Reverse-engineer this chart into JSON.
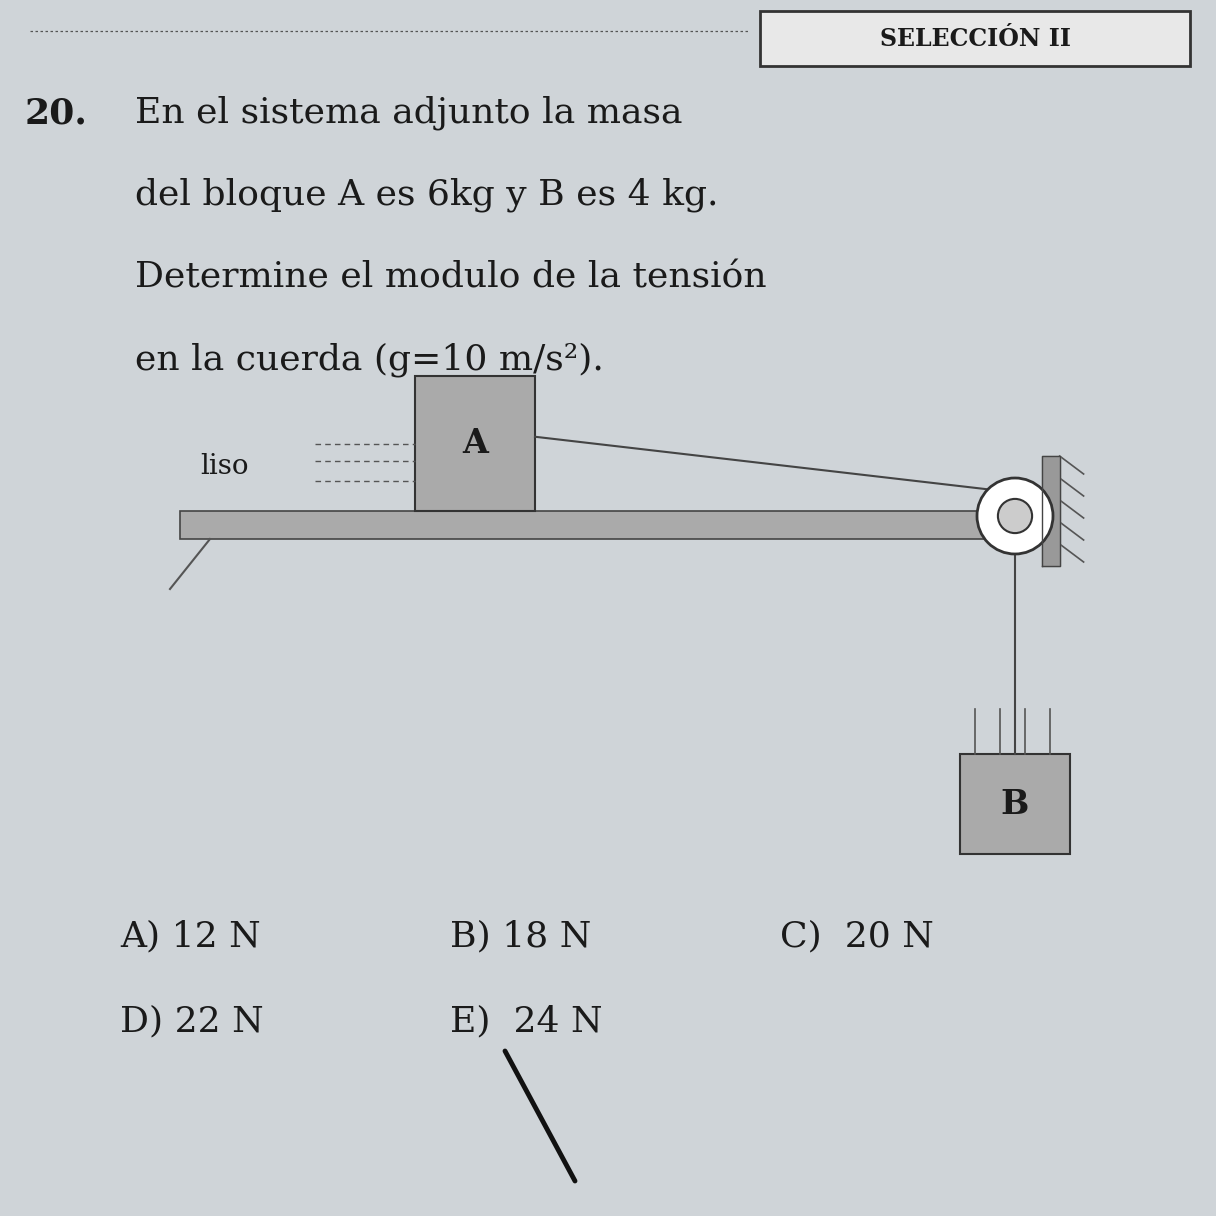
{
  "bg_color": "#cfd4d8",
  "title_box_text": "SELECCIÓN II",
  "problem_number": "20.",
  "line1": "En el sistema adjunto la masa",
  "line2": "del bloque A es 6kg y B es 4 kg.",
  "line3": "Determine el modulo de la tensión",
  "line4": "en la cuerda (g=10 m/s²).",
  "liso_label": "liso",
  "block_a_label": "A",
  "block_b_label": "B",
  "answer_a": "A) 12 N",
  "answer_b": "B) 18 N",
  "answer_c": "C)  20 N",
  "answer_d": "D) 22 N",
  "answer_e": "E)  24 N",
  "text_color": "#1a1a1a",
  "block_fill": "#aaaaaa",
  "table_fill": "#aaaaaa",
  "pulley_fill": "#cccccc"
}
